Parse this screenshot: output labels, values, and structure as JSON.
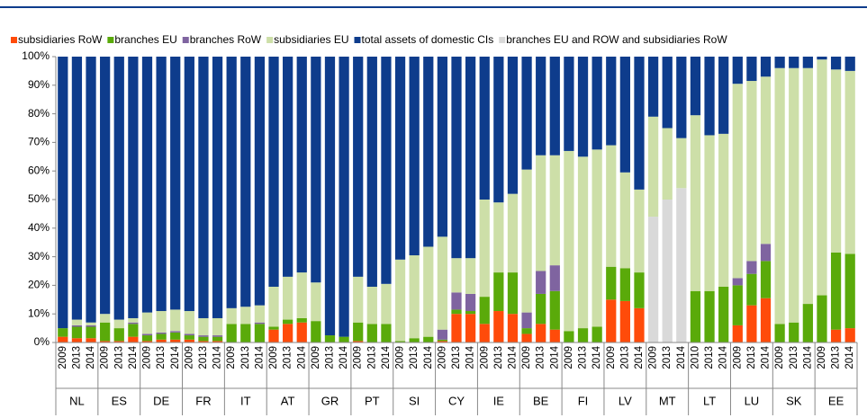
{
  "chart_data": {
    "type": "stacked_bar",
    "categories": [
      "2009",
      "2013",
      "2014",
      "2009",
      "2013",
      "2014",
      "2009",
      "2013",
      "2014",
      "2009",
      "2013",
      "2014",
      "2009",
      "2013",
      "2014",
      "2009",
      "2013",
      "2014",
      "2009",
      "2013",
      "2014",
      "2009",
      "2013",
      "2014",
      "2009",
      "2013",
      "2014",
      "2009",
      "2013",
      "2014",
      "2009",
      "2013",
      "2014",
      "2009",
      "2013",
      "2014",
      "2009",
      "2013",
      "2014",
      "2009",
      "2013",
      "2014",
      "2009",
      "2013",
      "2014",
      "2010",
      "2013",
      "2014",
      "2009",
      "2013",
      "2014",
      "2009",
      "2013",
      "2014",
      "2009",
      "2013",
      "2014"
    ],
    "groups": [
      "NL",
      "ES",
      "DE",
      "FR",
      "IT",
      "AT",
      "GR",
      "PT",
      "SI",
      "CY",
      "IE",
      "BE",
      "FI",
      "LV",
      "MT",
      "LT",
      "LU",
      "SK",
      "EE"
    ],
    "series": [
      {
        "name": "subsidiaries RoW",
        "color": "#ff4b0a",
        "values": [
          2,
          1.5,
          1.5,
          0.5,
          0.5,
          2,
          0.5,
          1,
          1,
          1,
          0.5,
          0.5,
          0,
          0,
          0,
          4.5,
          6.5,
          7,
          0,
          0,
          0,
          0.5,
          0,
          0,
          0,
          0,
          0,
          0.5,
          10,
          10,
          6.5,
          11,
          10,
          3,
          6.5,
          4.5,
          0,
          0,
          0,
          15,
          14.5,
          12,
          0,
          0,
          0,
          0,
          0,
          0,
          6,
          13,
          15.5,
          0,
          0,
          0,
          0,
          4.5,
          5
        ]
      },
      {
        "name": "branches EU",
        "color": "#5aaa0a",
        "values": [
          3,
          4,
          4,
          6.5,
          4.5,
          4.5,
          2,
          2,
          2.5,
          1.5,
          1.5,
          1.5,
          6.5,
          6.5,
          6.5,
          1,
          1.5,
          1.5,
          7.5,
          2.5,
          2,
          6.5,
          6.5,
          6.5,
          0.5,
          1.5,
          2,
          0.5,
          1.5,
          1,
          9.5,
          13.5,
          14.5,
          2,
          10.5,
          13.5,
          4,
          5,
          5.5,
          11.5,
          11.5,
          12.5,
          0,
          0,
          0,
          18,
          18,
          19.5,
          14,
          11,
          13,
          6.5,
          7,
          13.5,
          16.5,
          27,
          26
        ]
      },
      {
        "name": "branches RoW",
        "color": "#7f64a0",
        "values": [
          0,
          0.5,
          0.5,
          0,
          0,
          0.5,
          0.5,
          0.5,
          0.5,
          0.5,
          0.5,
          0.5,
          0,
          0,
          0.5,
          0,
          0,
          0,
          0,
          0,
          0,
          0,
          0,
          0,
          0,
          0,
          0,
          3.5,
          6,
          6,
          0,
          0,
          0,
          5.5,
          8,
          9,
          0,
          0,
          0,
          0,
          0,
          0,
          0,
          0,
          0,
          0,
          0,
          0,
          2.5,
          4.5,
          6,
          0,
          0,
          0,
          0,
          0,
          0
        ]
      },
      {
        "name": "subsidiaries EU",
        "color": "#cddfa8",
        "values": [
          0,
          2,
          1,
          3,
          3,
          1.5,
          7.5,
          7.5,
          7.5,
          8,
          6,
          6,
          5.5,
          6,
          6,
          14,
          15,
          16,
          13.5,
          0,
          0,
          16,
          13,
          14,
          28.5,
          29,
          31.5,
          32.5,
          12,
          12.5,
          34,
          24.5,
          27.5,
          50,
          40.5,
          38.5,
          63,
          60,
          62,
          42.5,
          33.5,
          29,
          35,
          25,
          17.5,
          61.5,
          54.5,
          53.5,
          68,
          63,
          58.5,
          89.5,
          89,
          82.5,
          82.5,
          64,
          64
        ]
      },
      {
        "name": "total assets of domestic CIs",
        "color": "#0e3c8c",
        "values": [
          95,
          92,
          93,
          90,
          92,
          91.5,
          89.5,
          89,
          88.5,
          89,
          91.5,
          91.5,
          88,
          87.5,
          87,
          80.5,
          77,
          75.5,
          79,
          97.5,
          98,
          77,
          80.5,
          79.5,
          71,
          69.5,
          66.5,
          63,
          70.5,
          70.5,
          50,
          51,
          48,
          39.5,
          34.5,
          34.5,
          33,
          35,
          32.5,
          31,
          40.5,
          46.5,
          21,
          25,
          28.5,
          20.5,
          27.5,
          27,
          9.5,
          8.5,
          7,
          4,
          4,
          4,
          1,
          4.5,
          5
        ]
      },
      {
        "name": "branches EU and ROW and subsidiaries RoW",
        "color": "#d9d9d9",
        "values": [
          0,
          0,
          0,
          0,
          0,
          0,
          0,
          0,
          0,
          0,
          0,
          0,
          0,
          0,
          0,
          0,
          0,
          0,
          0,
          0,
          0,
          0,
          0,
          0,
          0,
          0,
          0,
          0,
          0,
          0,
          0,
          0,
          0,
          0,
          0,
          0,
          0,
          0,
          0,
          0,
          0,
          0,
          44,
          50,
          54,
          0,
          0,
          0,
          0,
          0,
          0,
          0,
          0,
          0,
          0,
          0,
          0
        ]
      }
    ],
    "ylim": [
      0,
      100
    ],
    "yticks": [
      {
        "value": 0,
        "label": "0%"
      },
      {
        "value": 10,
        "label": "10%"
      },
      {
        "value": 20,
        "label": "20%"
      },
      {
        "value": 30,
        "label": "30%"
      },
      {
        "value": 40,
        "label": "40%"
      },
      {
        "value": 50,
        "label": "50%"
      },
      {
        "value": 60,
        "label": "60%"
      },
      {
        "value": 70,
        "label": "70%"
      },
      {
        "value": 80,
        "label": "80%"
      },
      {
        "value": 90,
        "label": "90%"
      },
      {
        "value": 100,
        "label": "100%"
      }
    ],
    "grid": false,
    "legend": "top"
  }
}
